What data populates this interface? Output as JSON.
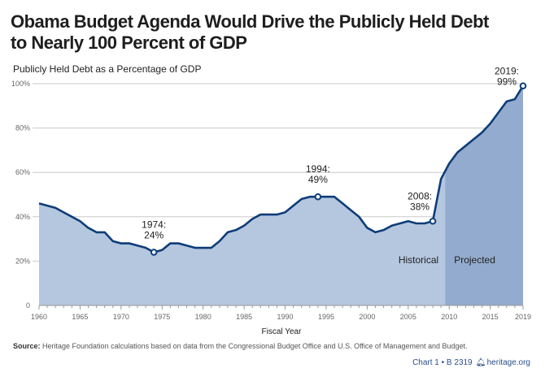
{
  "title_line1": "Obama Budget Agenda Would Drive the Publicly Held Debt",
  "title_line2": "to Nearly 100 Percent of GDP",
  "subtitle": "Publicly Held Debt as a Percentage of GDP",
  "source_label": "Source:",
  "source_text": " Heritage Foundation calculations based on data from the Congressional Budget Office and U.S. Office of Management and Budget.",
  "footer": {
    "chart_ref": "Chart 1 • B 2319",
    "icon": "liberty-bell-icon",
    "site": "heritage.org"
  },
  "colors": {
    "line": "#0e3d78",
    "historical_fill": "#b5c7df",
    "projected_fill": "#93abce",
    "grid": "#c8c8c8"
  },
  "chart_data": {
    "type": "area",
    "title": "Obama Budget Agenda Would Drive the Publicly Held Debt to Nearly 100 Percent of GDP",
    "subtitle": "Publicly Held Debt as a Percentage of GDP",
    "xlabel": "Fiscal Year",
    "ylabel": "",
    "xlim": [
      1960,
      2019
    ],
    "ylim": [
      0,
      100
    ],
    "grid": true,
    "x_ticks": [
      "1960",
      "1965",
      "1970",
      "1975",
      "1980",
      "1985",
      "1990",
      "1995",
      "2000",
      "2005",
      "2010",
      "2015",
      "2019"
    ],
    "x_tick_values": [
      1960,
      1965,
      1970,
      1975,
      1980,
      1985,
      1990,
      1995,
      2000,
      2005,
      2010,
      2015,
      2019
    ],
    "y_ticks": [
      "0",
      "20%",
      "40%",
      "60%",
      "80%",
      "100%"
    ],
    "y_tick_values": [
      0,
      20,
      40,
      60,
      80,
      100
    ],
    "x": [
      1960,
      1961,
      1962,
      1963,
      1964,
      1965,
      1966,
      1967,
      1968,
      1969,
      1970,
      1971,
      1972,
      1973,
      1974,
      1975,
      1976,
      1977,
      1978,
      1979,
      1980,
      1981,
      1982,
      1983,
      1984,
      1985,
      1986,
      1987,
      1988,
      1989,
      1990,
      1991,
      1992,
      1993,
      1994,
      1995,
      1996,
      1997,
      1998,
      1999,
      2000,
      2001,
      2002,
      2003,
      2004,
      2005,
      2006,
      2007,
      2008,
      2009,
      2010,
      2011,
      2012,
      2013,
      2014,
      2015,
      2016,
      2017,
      2018,
      2019
    ],
    "series": [
      {
        "name": "Publicly Held Debt (% of GDP)",
        "values": [
          46,
          45,
          44,
          42,
          40,
          38,
          35,
          33,
          33,
          29,
          28,
          28,
          27,
          26,
          24,
          25,
          28,
          28,
          27,
          26,
          26,
          26,
          29,
          33,
          34,
          36,
          39,
          41,
          41,
          41,
          42,
          45,
          48,
          49,
          49,
          49,
          49,
          46,
          43,
          40,
          35,
          33,
          34,
          36,
          37,
          38,
          37,
          37,
          38,
          57,
          64,
          69,
          72,
          75,
          78,
          82,
          87,
          92,
          93,
          99
        ]
      }
    ],
    "regions": [
      {
        "label": "Historical",
        "from": 1960,
        "to": 2009.5
      },
      {
        "label": "Projected",
        "from": 2009.5,
        "to": 2019
      }
    ],
    "annotations": [
      {
        "x": 1974,
        "y": 24,
        "line1": "1974:",
        "line2": "24%"
      },
      {
        "x": 1994,
        "y": 49,
        "line1": "1994:",
        "line2": "49%"
      },
      {
        "x": 2008,
        "y": 38,
        "line1": "2008:",
        "line2": "38%"
      },
      {
        "x": 2019,
        "y": 99,
        "line1": "2019:",
        "line2": "99%"
      }
    ]
  }
}
